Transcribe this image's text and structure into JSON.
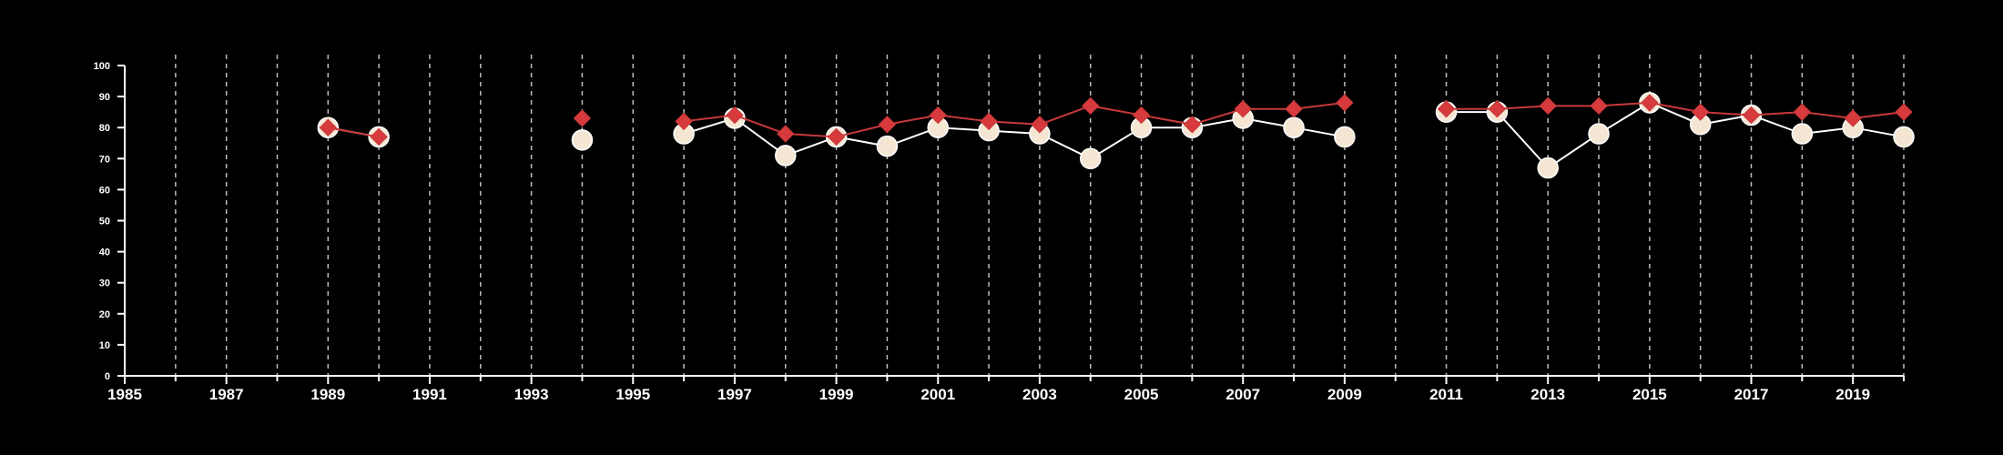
{
  "chart_data": {
    "type": "line",
    "title": "",
    "xlabel": "",
    "ylabel": "",
    "xlim": [
      1985,
      2020
    ],
    "ylim": [
      0,
      100
    ],
    "x_ticks": [
      1985,
      1987,
      1989,
      1991,
      1993,
      1995,
      1997,
      1999,
      2001,
      2003,
      2005,
      2007,
      2009,
      2011,
      2013,
      2015,
      2017,
      2019
    ],
    "y_ticks": [
      0,
      10,
      20,
      30,
      40,
      50,
      60,
      70,
      80,
      90,
      100
    ],
    "vertical_gridlines": "dashed, every year",
    "background": "#000000",
    "series": [
      {
        "marker": "circle",
        "color": "#ffffff",
        "fill": "#f5e6d3",
        "points": [
          {
            "x": 1989,
            "y": 80
          },
          {
            "x": 1990,
            "y": 77
          },
          {
            "x": 1994,
            "y": 76
          },
          {
            "x": 1996,
            "y": 78
          },
          {
            "x": 1997,
            "y": 83
          },
          {
            "x": 1998,
            "y": 71
          },
          {
            "x": 1999,
            "y": 77
          },
          {
            "x": 2000,
            "y": 74
          },
          {
            "x": 2001,
            "y": 80
          },
          {
            "x": 2002,
            "y": 79
          },
          {
            "x": 2003,
            "y": 78
          },
          {
            "x": 2004,
            "y": 70
          },
          {
            "x": 2005,
            "y": 80
          },
          {
            "x": 2006,
            "y": 80
          },
          {
            "x": 2007,
            "y": 83
          },
          {
            "x": 2008,
            "y": 80
          },
          {
            "x": 2009,
            "y": 77
          },
          {
            "x": 2011,
            "y": 85
          },
          {
            "x": 2012,
            "y": 85
          },
          {
            "x": 2013,
            "y": 67
          },
          {
            "x": 2014,
            "y": 78
          },
          {
            "x": 2015,
            "y": 88
          },
          {
            "x": 2016,
            "y": 81
          },
          {
            "x": 2017,
            "y": 84
          },
          {
            "x": 2018,
            "y": 78
          },
          {
            "x": 2019,
            "y": 80
          },
          {
            "x": 2020,
            "y": 77
          }
        ]
      },
      {
        "marker": "diamond",
        "color": "#c8383a",
        "fill": "#d63a3c",
        "points": [
          {
            "x": 1989,
            "y": 80
          },
          {
            "x": 1990,
            "y": 77
          },
          {
            "x": 1994,
            "y": 83
          },
          {
            "x": 1996,
            "y": 82
          },
          {
            "x": 1997,
            "y": 84
          },
          {
            "x": 1998,
            "y": 78
          },
          {
            "x": 1999,
            "y": 77
          },
          {
            "x": 2000,
            "y": 81
          },
          {
            "x": 2001,
            "y": 84
          },
          {
            "x": 2002,
            "y": 82
          },
          {
            "x": 2003,
            "y": 81
          },
          {
            "x": 2004,
            "y": 87
          },
          {
            "x": 2005,
            "y": 84
          },
          {
            "x": 2006,
            "y": 81
          },
          {
            "x": 2007,
            "y": 86
          },
          {
            "x": 2008,
            "y": 86
          },
          {
            "x": 2009,
            "y": 88
          },
          {
            "x": 2011,
            "y": 86
          },
          {
            "x": 2012,
            "y": 86
          },
          {
            "x": 2013,
            "y": 87
          },
          {
            "x": 2014,
            "y": 87
          },
          {
            "x": 2015,
            "y": 88
          },
          {
            "x": 2016,
            "y": 85
          },
          {
            "x": 2017,
            "y": 84
          },
          {
            "x": 2018,
            "y": 85
          },
          {
            "x": 2019,
            "y": 83
          },
          {
            "x": 2020,
            "y": 85
          }
        ]
      }
    ]
  }
}
